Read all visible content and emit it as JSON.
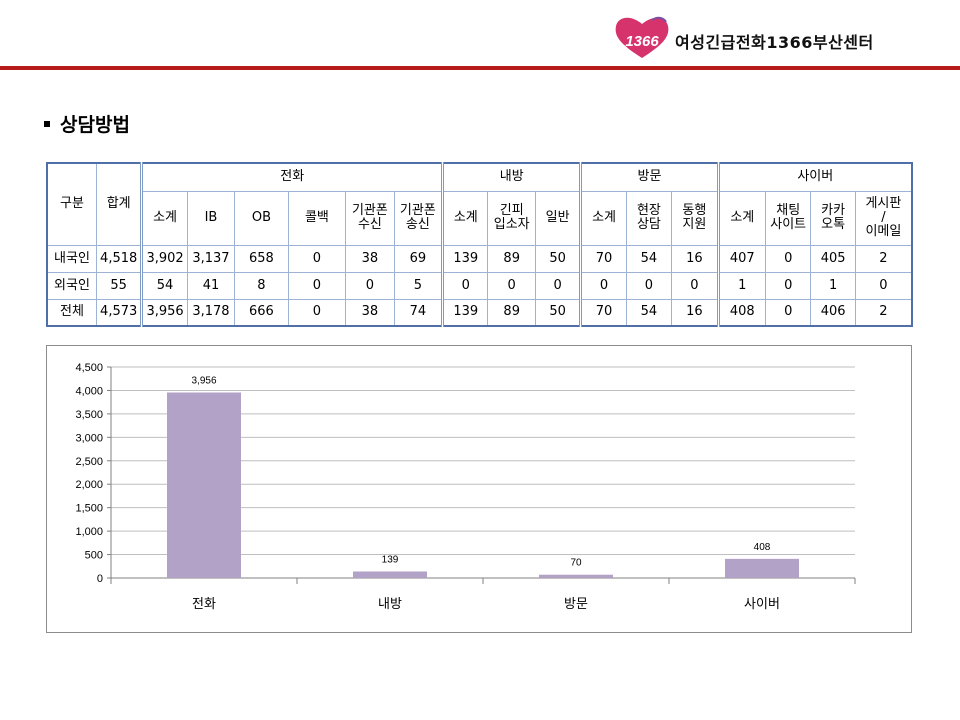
{
  "header": {
    "logo_text": "1366",
    "org_name": "여성긴급전화1366부산센터"
  },
  "section": {
    "title": "상담방법"
  },
  "table": {
    "group_headers": {
      "category": "구분",
      "total": "합계",
      "phone": "전화",
      "visit_in": "내방",
      "visit_out": "방문",
      "cyber": "사이버"
    },
    "sub_headers": [
      "소계",
      "IB",
      "OB",
      "콜백",
      "기관폰\n수신",
      "기관폰\n송신",
      "소계",
      "긴피\n입소자",
      "일반",
      "소계",
      "현장\n상담",
      "동행\n지원",
      "소계",
      "채팅\n사이트",
      "카카\n오톡",
      "게시판\n/\n이메일"
    ],
    "rows": [
      {
        "label": "내국인",
        "values": [
          "4,518",
          "3,902",
          "3,137",
          "658",
          "0",
          "38",
          "69",
          "139",
          "89",
          "50",
          "70",
          "54",
          "16",
          "407",
          "0",
          "405",
          "2"
        ]
      },
      {
        "label": "외국인",
        "values": [
          "55",
          "54",
          "41",
          "8",
          "0",
          "0",
          "5",
          "0",
          "0",
          "0",
          "0",
          "0",
          "0",
          "1",
          "0",
          "1",
          "0"
        ]
      },
      {
        "label": "전체",
        "values": [
          "4,573",
          "3,956",
          "3,178",
          "666",
          "0",
          "38",
          "74",
          "139",
          "89",
          "50",
          "70",
          "54",
          "16",
          "408",
          "0",
          "406",
          "2"
        ]
      }
    ]
  },
  "chart_data": {
    "type": "bar",
    "categories": [
      "전화",
      "내방",
      "방문",
      "사이버"
    ],
    "values": [
      3956,
      139,
      70,
      408
    ],
    "data_labels": [
      "3,956",
      "139",
      "70",
      "408"
    ],
    "y_ticks": [
      "0",
      "500",
      "1,000",
      "1,500",
      "2,000",
      "2,500",
      "3,000",
      "3,500",
      "4,000",
      "4,500"
    ],
    "ylim": [
      0,
      4500
    ],
    "grid": true,
    "bar_color": "#b3a2c7",
    "title": "",
    "xlabel": "",
    "ylabel": ""
  },
  "colors": {
    "accent_line": "#b71c1c",
    "table_border": "#9db3d4",
    "bar": "#b3a2c7"
  }
}
